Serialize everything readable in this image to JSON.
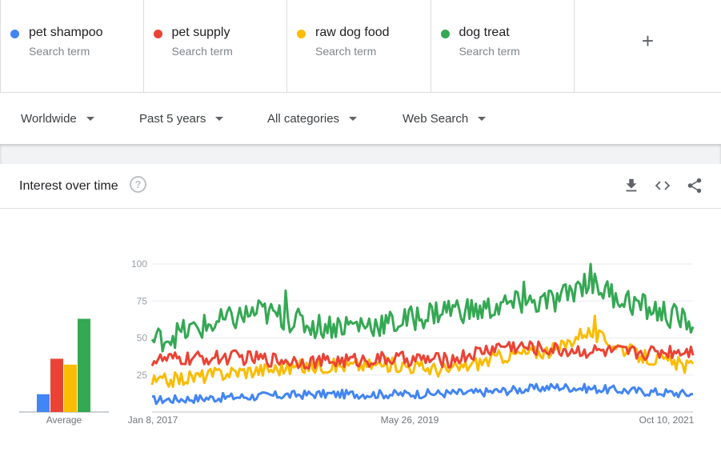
{
  "terms": [
    {
      "name": "pet shampoo",
      "subtitle": "Search term",
      "color": "#4285f4"
    },
    {
      "name": "pet supply",
      "subtitle": "Search term",
      "color": "#ea4335"
    },
    {
      "name": "raw dog food",
      "subtitle": "Search term",
      "color": "#fbbc04"
    },
    {
      "name": "dog treat",
      "subtitle": "Search term",
      "color": "#34a853"
    }
  ],
  "add_term_icon": "+",
  "filters": {
    "region": "Worldwide",
    "time_range": "Past 5 years",
    "category": "All categories",
    "search_type": "Web Search"
  },
  "card": {
    "title": "Interest over time",
    "help_icon": "?",
    "icons": [
      "download-icon",
      "embed-code-icon",
      "share-icon"
    ]
  },
  "chart_data": {
    "type": "line",
    "y_ticks": [
      "100",
      "75",
      "50",
      "25"
    ],
    "ylim": [
      0,
      100
    ],
    "x_labels": [
      "Jan 8, 2017",
      "May 26, 2019",
      "Oct 10, 2021"
    ],
    "average_label": "Average",
    "averages": [
      12,
      36,
      32,
      63
    ],
    "key_points": [
      {
        "term": "pet shampoo",
        "points": [
          [
            0,
            8
          ],
          [
            15,
            10
          ],
          [
            30,
            12
          ],
          [
            45,
            12
          ],
          [
            60,
            13
          ],
          [
            75,
            17
          ],
          [
            90,
            14
          ],
          [
            100,
            12
          ]
        ]
      },
      {
        "term": "pet supply",
        "points": [
          [
            0,
            35
          ],
          [
            15,
            37
          ],
          [
            30,
            34
          ],
          [
            45,
            36
          ],
          [
            55,
            35
          ],
          [
            65,
            45
          ],
          [
            75,
            42
          ],
          [
            90,
            40
          ],
          [
            100,
            42
          ]
        ]
      },
      {
        "term": "raw dog food",
        "points": [
          [
            0,
            20
          ],
          [
            15,
            27
          ],
          [
            30,
            31
          ],
          [
            45,
            32
          ],
          [
            55,
            28
          ],
          [
            65,
            38
          ],
          [
            75,
            42
          ],
          [
            80,
            55
          ],
          [
            90,
            38
          ],
          [
            100,
            30
          ]
        ]
      },
      {
        "term": "dog treat",
        "points": [
          [
            0,
            48
          ],
          [
            10,
            58
          ],
          [
            20,
            68
          ],
          [
            30,
            58
          ],
          [
            45,
            60
          ],
          [
            55,
            70
          ],
          [
            60,
            68
          ],
          [
            65,
            72
          ],
          [
            75,
            75
          ],
          [
            80,
            88
          ],
          [
            90,
            72
          ],
          [
            100,
            60
          ]
        ]
      }
    ]
  }
}
